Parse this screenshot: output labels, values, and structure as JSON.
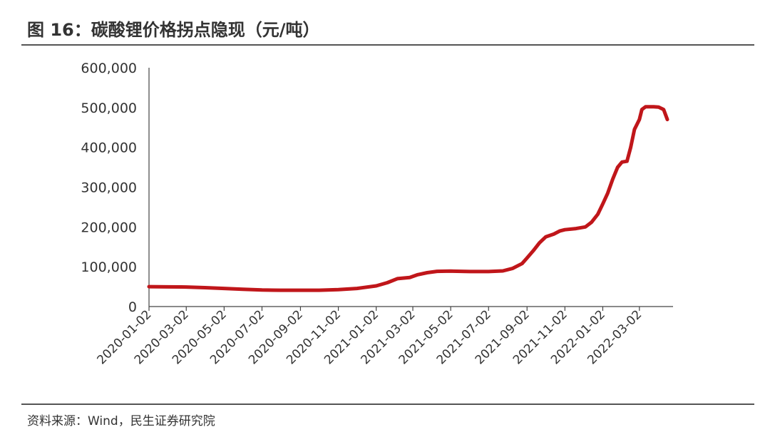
{
  "header": {
    "title": "图 16：碳酸锂价格拐点隐现（元/吨）"
  },
  "footer": {
    "source": "资料来源：Wind，民生证券研究院"
  },
  "chart_data": {
    "type": "line",
    "title": "图 16：碳酸锂价格拐点隐现（元/吨）",
    "ylim": [
      0,
      600000
    ],
    "y_ticks": [
      "0",
      "100,000",
      "200,000",
      "300,000",
      "400,000",
      "500,000",
      "600,000"
    ],
    "x_ticks": [
      "2020-01-02",
      "2020-03-02",
      "2020-05-02",
      "2020-07-02",
      "2020-09-02",
      "2020-11-02",
      "2021-01-02",
      "2021-03-02",
      "2021-05-02",
      "2021-07-02",
      "2021-09-02",
      "2021-11-02",
      "2022-01-02",
      "2022-03-02"
    ],
    "grid": false,
    "legend": "none",
    "series": [
      {
        "color": "#c0161a",
        "points": [
          [
            "2020-01-02",
            50000
          ],
          [
            "2020-02-01",
            49500
          ],
          [
            "2020-03-02",
            49000
          ],
          [
            "2020-04-01",
            47500
          ],
          [
            "2020-05-02",
            45500
          ],
          [
            "2020-06-01",
            43500
          ],
          [
            "2020-07-02",
            41500
          ],
          [
            "2020-08-01",
            41000
          ],
          [
            "2020-09-02",
            41000
          ],
          [
            "2020-10-02",
            41000
          ],
          [
            "2020-11-02",
            42500
          ],
          [
            "2020-12-02",
            45500
          ],
          [
            "2021-01-02",
            52000
          ],
          [
            "2021-01-20",
            60000
          ],
          [
            "2021-02-05",
            70000
          ],
          [
            "2021-02-25",
            73000
          ],
          [
            "2021-03-10",
            80000
          ],
          [
            "2021-03-25",
            85000
          ],
          [
            "2021-04-10",
            88500
          ],
          [
            "2021-05-02",
            89000
          ],
          [
            "2021-06-02",
            88000
          ],
          [
            "2021-07-02",
            88000
          ],
          [
            "2021-07-25",
            89500
          ],
          [
            "2021-08-10",
            96000
          ],
          [
            "2021-08-25",
            108000
          ],
          [
            "2021-09-02",
            122000
          ],
          [
            "2021-09-12",
            140000
          ],
          [
            "2021-09-22",
            160000
          ],
          [
            "2021-10-02",
            175000
          ],
          [
            "2021-10-15",
            182000
          ],
          [
            "2021-10-25",
            190000
          ],
          [
            "2021-11-02",
            193000
          ],
          [
            "2021-11-20",
            196000
          ],
          [
            "2021-12-05",
            200000
          ],
          [
            "2021-12-15",
            212000
          ],
          [
            "2021-12-25",
            232000
          ],
          [
            "2022-01-02",
            258000
          ],
          [
            "2022-01-10",
            285000
          ],
          [
            "2022-01-18",
            320000
          ],
          [
            "2022-01-26",
            350000
          ],
          [
            "2022-02-02",
            363000
          ],
          [
            "2022-02-10",
            365000
          ],
          [
            "2022-02-16",
            400000
          ],
          [
            "2022-02-22",
            445000
          ],
          [
            "2022-03-02",
            470000
          ],
          [
            "2022-03-06",
            495000
          ],
          [
            "2022-03-12",
            502000
          ],
          [
            "2022-03-25",
            502000
          ],
          [
            "2022-04-02",
            501000
          ],
          [
            "2022-04-10",
            495000
          ],
          [
            "2022-04-16",
            470000
          ]
        ]
      }
    ]
  }
}
